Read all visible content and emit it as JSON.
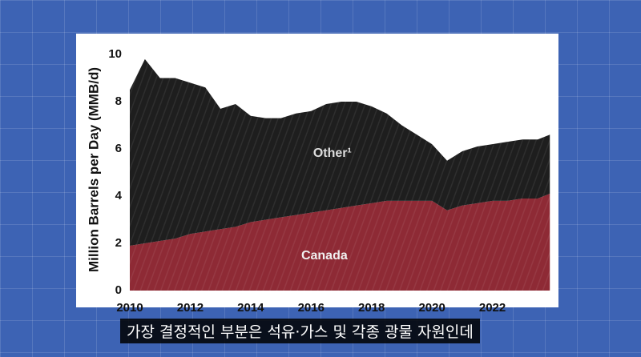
{
  "chart_data": {
    "type": "stacked_area",
    "y_label": "Million Barrels per Day (MMB/d)",
    "x": [
      2010,
      2010.5,
      2011,
      2011.5,
      2012,
      2012.5,
      2013,
      2013.5,
      2014,
      2014.5,
      2015,
      2015.5,
      2016,
      2016.5,
      2017,
      2017.5,
      2018,
      2018.5,
      2019,
      2019.5,
      2020,
      2020.5,
      2021,
      2021.5,
      2022,
      2022.5,
      2023,
      2023.5,
      2023.9
    ],
    "series": [
      {
        "name": "Canada",
        "color": "#8e2a35",
        "values": [
          1.9,
          2.0,
          2.1,
          2.2,
          2.4,
          2.5,
          2.6,
          2.7,
          2.9,
          3.0,
          3.1,
          3.2,
          3.3,
          3.4,
          3.5,
          3.6,
          3.7,
          3.8,
          3.8,
          3.8,
          3.8,
          3.4,
          3.6,
          3.7,
          3.8,
          3.8,
          3.9,
          3.9,
          4.1
        ]
      },
      {
        "name": "Other¹",
        "color": "#1e1e1e",
        "values": [
          6.6,
          7.8,
          6.9,
          6.8,
          6.4,
          6.1,
          5.1,
          5.2,
          4.5,
          4.3,
          4.2,
          4.3,
          4.3,
          4.5,
          4.5,
          4.4,
          4.1,
          3.7,
          3.2,
          2.8,
          2.4,
          2.1,
          2.3,
          2.4,
          2.4,
          2.5,
          2.5,
          2.5,
          2.5
        ]
      }
    ],
    "xlim": [
      2010,
      2024
    ],
    "xticks": [
      2010,
      2012,
      2014,
      2016,
      2018,
      2020,
      2022
    ],
    "ylim": [
      0,
      10
    ],
    "yticks": [
      0,
      2,
      4,
      6,
      8,
      10
    ],
    "grid": false
  },
  "caption": "가장 결정적인 부분은 석유·가스 및 각종 광물 자원인데"
}
